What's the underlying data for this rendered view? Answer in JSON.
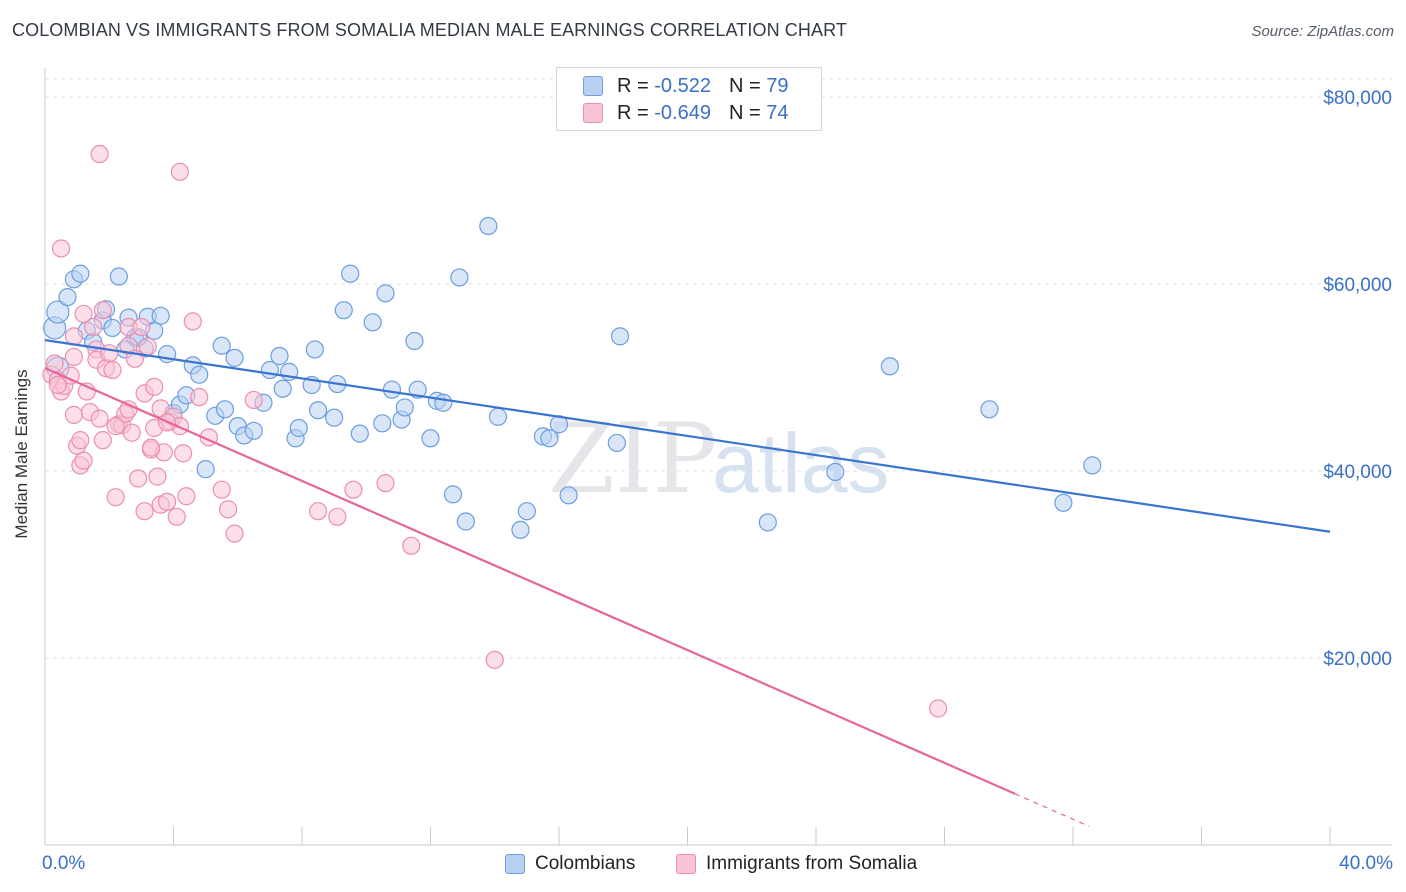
{
  "title": "COLOMBIAN VS IMMIGRANTS FROM SOMALIA MEDIAN MALE EARNINGS CORRELATION CHART",
  "source": "Source: ZipAtlas.com",
  "watermark": {
    "zip": "ZIP",
    "atlas": "atlas"
  },
  "legend": {
    "r_label": "R =",
    "n_label": "N =",
    "items": [
      {
        "name": "Colombians",
        "r": "-0.522",
        "n": "79",
        "fill": "#b8d1f2",
        "stroke": "#6c9ee0"
      },
      {
        "name": "Immigrants from Somalia",
        "r": "-0.649",
        "n": "74",
        "fill": "#f9c5d5",
        "stroke": "#ec8fae"
      }
    ]
  },
  "chart_data": {
    "type": "scatter",
    "title": "COLOMBIAN VS IMMIGRANTS FROM SOMALIA MEDIAN MALE EARNINGS CORRELATION CHART",
    "xlabel": "",
    "ylabel": "Median Male Earnings",
    "xlim": [
      0,
      40
    ],
    "ylim": [
      0,
      82000
    ],
    "x_tick_labels": [
      "0.0%",
      "40.0%"
    ],
    "y_ticks": [
      20000,
      40000,
      60000,
      80000
    ],
    "y_tick_labels": [
      "$20,000",
      "$40,000",
      "$60,000",
      "$80,000"
    ],
    "grid": true,
    "series": [
      {
        "name": "Colombians",
        "color": "#3a74d0",
        "fill": "#b8d1f2",
        "stroke": "#6c9ee0",
        "trend": {
          "x": [
            0,
            40
          ],
          "y": [
            54000,
            33500
          ],
          "dashed_from": null
        },
        "points": [
          [
            0.3,
            55300
          ],
          [
            0.4,
            57000
          ],
          [
            0.4,
            51000
          ],
          [
            0.7,
            58600
          ],
          [
            0.9,
            60500
          ],
          [
            1.1,
            61100
          ],
          [
            1.3,
            55000
          ],
          [
            1.5,
            53800
          ],
          [
            1.8,
            56100
          ],
          [
            1.9,
            57300
          ],
          [
            2.1,
            55300
          ],
          [
            2.3,
            60800
          ],
          [
            2.5,
            53000
          ],
          [
            2.6,
            56400
          ],
          [
            2.8,
            54300
          ],
          [
            3.1,
            53100
          ],
          [
            3.2,
            56500
          ],
          [
            3.4,
            55000
          ],
          [
            3.6,
            56600
          ],
          [
            3.8,
            52500
          ],
          [
            4.0,
            46200
          ],
          [
            4.2,
            47100
          ],
          [
            4.4,
            48100
          ],
          [
            4.6,
            51300
          ],
          [
            4.8,
            50300
          ],
          [
            5.0,
            40200
          ],
          [
            5.3,
            45900
          ],
          [
            5.5,
            53400
          ],
          [
            5.6,
            46600
          ],
          [
            5.9,
            52100
          ],
          [
            6.0,
            44800
          ],
          [
            6.2,
            43800
          ],
          [
            6.5,
            44300
          ],
          [
            6.8,
            47300
          ],
          [
            7.0,
            50800
          ],
          [
            7.3,
            52300
          ],
          [
            7.4,
            48800
          ],
          [
            7.6,
            50600
          ],
          [
            7.8,
            43500
          ],
          [
            7.9,
            44600
          ],
          [
            8.3,
            49200
          ],
          [
            8.4,
            53000
          ],
          [
            8.5,
            46500
          ],
          [
            9.0,
            45700
          ],
          [
            9.1,
            49300
          ],
          [
            9.3,
            57200
          ],
          [
            9.5,
            61100
          ],
          [
            9.8,
            44000
          ],
          [
            10.2,
            55900
          ],
          [
            10.5,
            45100
          ],
          [
            10.6,
            59000
          ],
          [
            10.8,
            48700
          ],
          [
            11.1,
            45500
          ],
          [
            11.2,
            46800
          ],
          [
            11.5,
            53900
          ],
          [
            11.6,
            48700
          ],
          [
            12.0,
            43500
          ],
          [
            12.2,
            47500
          ],
          [
            12.4,
            47300
          ],
          [
            12.7,
            37500
          ],
          [
            12.9,
            60700
          ],
          [
            13.1,
            34600
          ],
          [
            13.8,
            66200
          ],
          [
            14.1,
            45800
          ],
          [
            14.8,
            33700
          ],
          [
            15.0,
            35700
          ],
          [
            15.5,
            43700
          ],
          [
            15.7,
            43500
          ],
          [
            16.0,
            45000
          ],
          [
            16.3,
            37400
          ],
          [
            17.8,
            43000
          ],
          [
            17.9,
            54400
          ],
          [
            22.5,
            34500
          ],
          [
            24.6,
            39900
          ],
          [
            26.3,
            51200
          ],
          [
            29.4,
            46600
          ],
          [
            31.7,
            36600
          ],
          [
            32.6,
            40600
          ],
          [
            2.9,
            54300
          ]
        ]
      },
      {
        "name": "Immigrants from Somalia",
        "color": "#e4669a",
        "fill": "#f9c5d5",
        "stroke": "#ec8fae",
        "trend": {
          "x": [
            0,
            32.5
          ],
          "y": [
            51000,
            2000
          ],
          "dashed_from": 30.2
        },
        "points": [
          [
            0.2,
            50300
          ],
          [
            0.3,
            51500
          ],
          [
            0.4,
            49700
          ],
          [
            0.5,
            48500
          ],
          [
            0.6,
            49100
          ],
          [
            0.5,
            63800
          ],
          [
            0.8,
            50200
          ],
          [
            0.9,
            54400
          ],
          [
            0.9,
            46000
          ],
          [
            1.0,
            42700
          ],
          [
            1.1,
            43300
          ],
          [
            1.1,
            40600
          ],
          [
            1.2,
            41100
          ],
          [
            1.3,
            48500
          ],
          [
            1.4,
            46300
          ],
          [
            1.5,
            55400
          ],
          [
            1.6,
            53000
          ],
          [
            1.6,
            51900
          ],
          [
            1.7,
            45600
          ],
          [
            1.8,
            43300
          ],
          [
            1.8,
            57200
          ],
          [
            1.9,
            51000
          ],
          [
            2.0,
            52600
          ],
          [
            2.1,
            50800
          ],
          [
            2.2,
            37200
          ],
          [
            2.3,
            45000
          ],
          [
            2.4,
            44900
          ],
          [
            2.5,
            46100
          ],
          [
            2.6,
            55400
          ],
          [
            2.6,
            53400
          ],
          [
            2.7,
            44100
          ],
          [
            2.8,
            52000
          ],
          [
            2.9,
            39200
          ],
          [
            3.0,
            55400
          ],
          [
            3.1,
            48300
          ],
          [
            3.1,
            35700
          ],
          [
            3.2,
            53300
          ],
          [
            3.3,
            42300
          ],
          [
            3.4,
            49000
          ],
          [
            3.4,
            44600
          ],
          [
            3.5,
            39400
          ],
          [
            3.6,
            36400
          ],
          [
            3.6,
            46700
          ],
          [
            3.7,
            42000
          ],
          [
            3.8,
            36700
          ],
          [
            3.9,
            45300
          ],
          [
            4.0,
            45800
          ],
          [
            4.1,
            35100
          ],
          [
            4.2,
            44800
          ],
          [
            4.3,
            41900
          ],
          [
            4.4,
            37300
          ],
          [
            4.6,
            56000
          ],
          [
            4.8,
            47900
          ],
          [
            5.1,
            43600
          ],
          [
            5.5,
            38000
          ],
          [
            5.7,
            35900
          ],
          [
            5.9,
            33300
          ],
          [
            6.5,
            47600
          ],
          [
            8.5,
            35700
          ],
          [
            9.1,
            35100
          ],
          [
            9.6,
            38000
          ],
          [
            10.6,
            38700
          ],
          [
            11.4,
            32000
          ],
          [
            14.0,
            19800
          ],
          [
            27.8,
            14600
          ],
          [
            1.7,
            73900
          ],
          [
            4.2,
            72000
          ],
          [
            0.4,
            49200
          ],
          [
            0.9,
            52200
          ],
          [
            2.2,
            44800
          ],
          [
            3.3,
            42500
          ],
          [
            1.2,
            56800
          ],
          [
            2.6,
            46600
          ],
          [
            3.8,
            45200
          ]
        ]
      }
    ]
  }
}
